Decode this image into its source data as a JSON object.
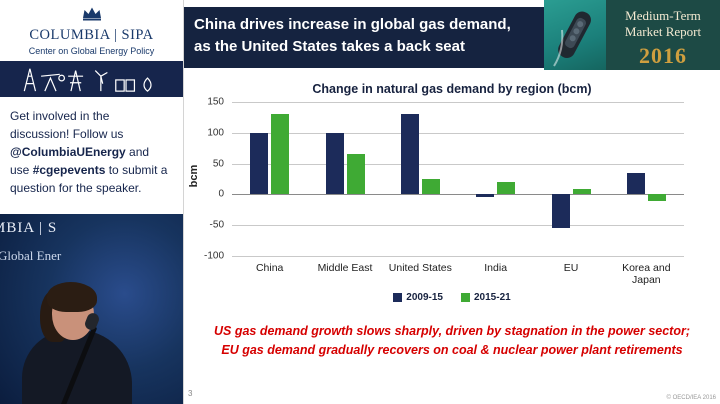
{
  "sidebar": {
    "logo": {
      "wordmark": "COLUMBIA | SIPA",
      "subtitle": "Center on Global Energy Policy"
    },
    "message": {
      "part1": "Get involved in the discussion! Follow us ",
      "handle": "@ColumbiaUEnergy",
      "part2": " and use ",
      "hashtag": "#cgepevents",
      "part3": " to submit a question for the speaker."
    },
    "video_backdrop": {
      "line1": "MBIA | S",
      "line2": "Global Ener"
    }
  },
  "slide": {
    "title": {
      "line1": "China drives increase in global gas demand,",
      "line2": "as the United States takes a back seat"
    },
    "badge": {
      "line1": "Medium-Term",
      "line2": "Market Report",
      "year": "2016"
    },
    "takeaway": {
      "line1": "US gas demand growth slows sharply, driven by stagnation in the power sector;",
      "line2": "EU gas demand gradually recovers on coal & nuclear power plant retirements"
    },
    "page_number": "3",
    "copyright": "© OECD/IEA 2016"
  },
  "chart_data": {
    "type": "bar",
    "title": "Change in natural gas demand by region (bcm)",
    "categories": [
      "China",
      "Middle East",
      "United States",
      "India",
      "EU",
      "Korea and Japan"
    ],
    "series": [
      {
        "name": "2009-15",
        "color": "#1c2b5a",
        "values": [
          100,
          100,
          130,
          -5,
          -55,
          35
        ]
      },
      {
        "name": "2015-21",
        "color": "#3faa34",
        "values": [
          130,
          65,
          25,
          20,
          8,
          -10
        ]
      }
    ],
    "ylabel": "bcm",
    "ylim": [
      -100,
      150
    ],
    "yticks": [
      150,
      100,
      50,
      0,
      -50,
      -100
    ],
    "grid": true,
    "legend_position": "bottom"
  },
  "colors": {
    "navy_header": "#152340",
    "columbia_blue": "#1a3a6b",
    "badge_bg": "#1d4a45",
    "badge_gold": "#cf9f3f",
    "takeaway_red": "#d60000"
  }
}
